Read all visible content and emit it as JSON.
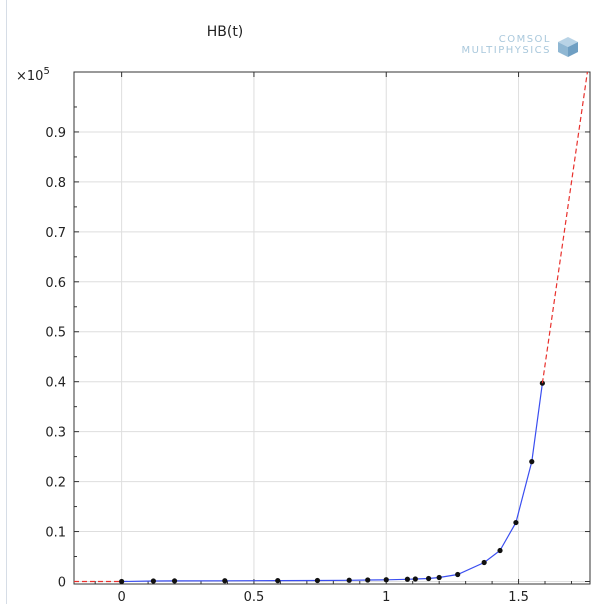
{
  "title": "HB(t)",
  "logo": {
    "line1": "COMSOL",
    "line2": "MULTIPHYSICS"
  },
  "chart_data": {
    "type": "line",
    "title": "HB(t)",
    "xlabel": "",
    "ylabel": "",
    "y_multiplier": "×10",
    "y_multiplier_exp": "5",
    "xlim": [
      -0.18,
      1.77
    ],
    "ylim": [
      -0.005,
      1.02
    ],
    "grid": true,
    "xticks": [
      0,
      0.5,
      1,
      1.5
    ],
    "xtick_labels": [
      "0",
      "0.5",
      "1",
      "1.5"
    ],
    "yticks": [
      0,
      0.1,
      0.2,
      0.3,
      0.4,
      0.5,
      0.6,
      0.7,
      0.8,
      0.9
    ],
    "ytick_labels": [
      "0",
      "0.1",
      "0.2",
      "0.3",
      "0.4",
      "0.5",
      "0.6",
      "0.7",
      "0.8",
      "0.9"
    ],
    "series": [
      {
        "style": "solid-with-markers",
        "color": "#3a4ef0",
        "marker_color": "#111111",
        "x": [
          0,
          0.12,
          0.2,
          0.39,
          0.59,
          0.74,
          0.86,
          0.93,
          1.0,
          1.08,
          1.11,
          1.16,
          1.2,
          1.27,
          1.37,
          1.43,
          1.49,
          1.55,
          1.59
        ],
        "y": [
          0,
          0.001,
          0.0012,
          0.0015,
          0.0018,
          0.002,
          0.0025,
          0.003,
          0.0035,
          0.0045,
          0.005,
          0.006,
          0.008,
          0.014,
          0.038,
          0.062,
          0.118,
          0.24,
          0.397
        ]
      },
      {
        "style": "dashed",
        "color": "#e8302c",
        "x": [
          -0.18,
          0
        ],
        "y": [
          0,
          0
        ]
      },
      {
        "style": "dashed",
        "color": "#e8302c",
        "x": [
          1.59,
          1.76
        ],
        "y": [
          0.397,
          1.02
        ]
      }
    ]
  }
}
